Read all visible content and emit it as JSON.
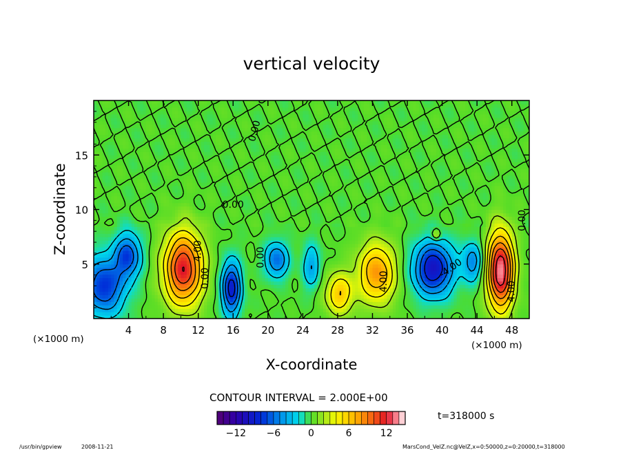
{
  "chart_data": {
    "type": "heatmap",
    "title": "vertical velocity",
    "xlabel": "X-coordinate",
    "ylabel": "Z-coordinate",
    "x_unit": "(×1000 m)",
    "z_unit": "(×1000 m)",
    "xlim": [
      0,
      50
    ],
    "ylim": [
      0,
      20
    ],
    "x_ticks": [
      4,
      8,
      12,
      16,
      20,
      24,
      28,
      32,
      36,
      40,
      44,
      48
    ],
    "y_ticks": [
      5,
      10,
      15
    ],
    "contour_interval_text": "CONTOUR INTERVAL = 2.000E+00",
    "time_text": "t=318000 s",
    "colorbar": {
      "range": [
        -15,
        15
      ],
      "step": 1,
      "tick_values": [
        -12,
        -6,
        0,
        6,
        12
      ],
      "tick_labels": [
        "−12",
        "−6",
        "0",
        "6",
        "12"
      ]
    },
    "contour_labels": [
      {
        "text": "0.00",
        "x": 18.5,
        "z": 17.2,
        "angle": -75
      },
      {
        "text": "0.00",
        "x": 16.0,
        "z": 10.4,
        "angle": 0
      },
      {
        "text": "0.00",
        "x": 49.2,
        "z": 9.0,
        "angle": -90
      },
      {
        "text": "0.00",
        "x": 12.8,
        "z": 3.7,
        "angle": -90
      },
      {
        "text": "0.00",
        "x": 19.2,
        "z": 5.6,
        "angle": -90
      },
      {
        "text": "4.00",
        "x": 12.0,
        "z": 6.2,
        "angle": -90
      },
      {
        "text": "4.00",
        "x": 33.3,
        "z": 3.4,
        "angle": -90
      },
      {
        "text": "-4.00",
        "x": 41.0,
        "z": 4.6,
        "angle": -35
      },
      {
        "text": "4.00",
        "x": 48.0,
        "z": 2.5,
        "angle": -90
      }
    ],
    "features": [
      {
        "kind": "updraft",
        "x": 10.3,
        "z": 4.6,
        "peak": 12,
        "rx": 2.2,
        "rz": 3.3
      },
      {
        "kind": "downdraft",
        "x": 1.2,
        "z": 3.0,
        "peak": -8,
        "rx": 2.3,
        "rz": 2.6
      },
      {
        "kind": "downdraft",
        "x": 3.9,
        "z": 5.8,
        "peak": -7,
        "rx": 1.5,
        "rz": 2.0
      },
      {
        "kind": "downdraft",
        "x": 15.8,
        "z": 2.8,
        "peak": -9,
        "rx": 1.1,
        "rz": 2.4
      },
      {
        "kind": "downdraft",
        "x": 21.0,
        "z": 5.4,
        "peak": -6,
        "rx": 1.3,
        "rz": 1.6
      },
      {
        "kind": "downdraft",
        "x": 25.0,
        "z": 4.8,
        "peak": -4,
        "rx": 1.0,
        "rz": 2.0
      },
      {
        "kind": "updraft",
        "x": 28.2,
        "z": 2.3,
        "peak": 6,
        "rx": 1.6,
        "rz": 1.9
      },
      {
        "kind": "updraft",
        "x": 32.5,
        "z": 4.2,
        "peak": 8,
        "rx": 2.1,
        "rz": 2.7
      },
      {
        "kind": "downdraft",
        "x": 39.0,
        "z": 4.6,
        "peak": -10,
        "rx": 2.2,
        "rz": 2.4
      },
      {
        "kind": "updraft",
        "x": 39.3,
        "z": 7.7,
        "peak": 4,
        "rx": 0.5,
        "rz": 0.5
      },
      {
        "kind": "downdraft",
        "x": 43.5,
        "z": 5.2,
        "peak": -5,
        "rx": 1.2,
        "rz": 1.8
      },
      {
        "kind": "updraft",
        "x": 46.7,
        "z": 4.4,
        "peak": 14,
        "rx": 1.5,
        "rz": 3.5
      }
    ]
  },
  "footer": {
    "program": "/usr/bin/gpview",
    "date": "2008-11-21",
    "source": "MarsCond_VelZ.nc@VelZ,x=0:50000,z=0:20000,t=318000"
  }
}
